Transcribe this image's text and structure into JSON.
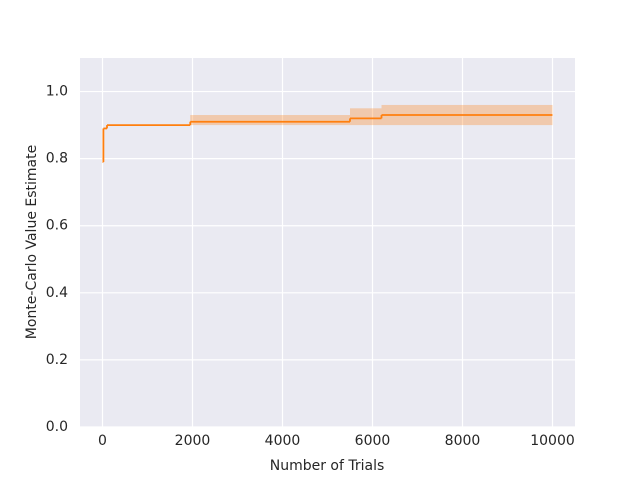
{
  "chart_data": {
    "type": "step-line",
    "xlabel": "Number of Trials",
    "ylabel": "Monte-Carlo Value Estimate",
    "x": [
      0,
      20,
      100,
      1950,
      5500,
      6200,
      10000
    ],
    "series": [
      {
        "color": "#ff7f0e",
        "values": [
          0.79,
          0.89,
          0.9,
          0.91,
          0.92,
          0.93,
          0.93
        ],
        "lower": [
          0.79,
          0.89,
          0.9,
          0.9,
          0.9,
          0.9,
          0.9
        ],
        "upper": [
          0.79,
          0.89,
          0.9,
          0.93,
          0.95,
          0.96,
          0.96
        ]
      }
    ],
    "xlim": [
      -500,
      10500
    ],
    "ylim": [
      0,
      1.1
    ],
    "xticks": [
      0,
      2000,
      4000,
      6000,
      8000,
      10000
    ],
    "yticks": [
      {
        "value": 0,
        "label": "0.0"
      },
      0.2,
      0.4,
      0.6,
      0.8,
      {
        "value": 1,
        "label": "1.0"
      }
    ],
    "grid": true
  }
}
